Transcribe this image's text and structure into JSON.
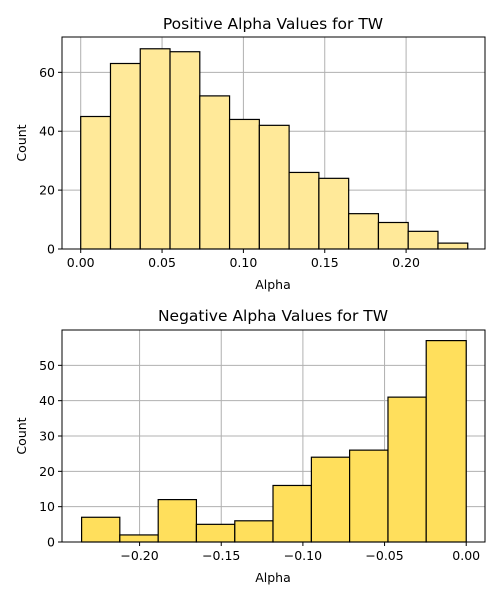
{
  "chart_data": [
    {
      "type": "histogram",
      "title": "Positive Alpha Values for TW",
      "xlabel": "Alpha",
      "ylabel": "Count",
      "xlim": [
        -0.0115,
        0.2485
      ],
      "ylim": [
        0,
        72
      ],
      "grid": true,
      "bar_color": "#ffe999",
      "x_ticks": [
        0.0,
        0.05,
        0.1,
        0.15,
        0.2
      ],
      "x_tick_labels": [
        "0.00",
        "0.05",
        "0.10",
        "0.15",
        "0.20"
      ],
      "y_ticks": [
        0,
        20,
        40,
        60
      ],
      "y_tick_labels": [
        "0",
        "20",
        "40",
        "60"
      ],
      "bins": [
        {
          "x0": 0.0,
          "x1": 0.0183,
          "count": 45
        },
        {
          "x0": 0.0183,
          "x1": 0.0366,
          "count": 63
        },
        {
          "x0": 0.0366,
          "x1": 0.0549,
          "count": 68
        },
        {
          "x0": 0.0549,
          "x1": 0.0732,
          "count": 67
        },
        {
          "x0": 0.0732,
          "x1": 0.0915,
          "count": 52
        },
        {
          "x0": 0.0915,
          "x1": 0.1098,
          "count": 44
        },
        {
          "x0": 0.1098,
          "x1": 0.1281,
          "count": 42
        },
        {
          "x0": 0.1281,
          "x1": 0.1464,
          "count": 26
        },
        {
          "x0": 0.1464,
          "x1": 0.1647,
          "count": 24
        },
        {
          "x0": 0.1647,
          "x1": 0.183,
          "count": 12
        },
        {
          "x0": 0.183,
          "x1": 0.2013,
          "count": 9
        },
        {
          "x0": 0.2013,
          "x1": 0.2196,
          "count": 6
        },
        {
          "x0": 0.2196,
          "x1": 0.2379,
          "count": 2
        }
      ]
    },
    {
      "type": "histogram",
      "title": "Negative Alpha Values for TW",
      "xlabel": "Alpha",
      "ylabel": "Count",
      "xlim": [
        -0.2475,
        0.0115
      ],
      "ylim": [
        0,
        60
      ],
      "grid": true,
      "bar_color": "#ffdf5c",
      "x_ticks": [
        -0.2,
        -0.15,
        -0.1,
        -0.05,
        0.0
      ],
      "x_tick_labels": [
        "−0.20",
        "−0.15",
        "−0.10",
        "−0.05",
        "0.00"
      ],
      "y_ticks": [
        0,
        10,
        20,
        30,
        40,
        50
      ],
      "y_tick_labels": [
        "0",
        "10",
        "20",
        "30",
        "40",
        "50"
      ],
      "bins": [
        {
          "x0": -0.2355,
          "x1": -0.2121,
          "count": 7
        },
        {
          "x0": -0.2121,
          "x1": -0.1886,
          "count": 2
        },
        {
          "x0": -0.1886,
          "x1": -0.1652,
          "count": 12
        },
        {
          "x0": -0.1652,
          "x1": -0.1417,
          "count": 5
        },
        {
          "x0": -0.1417,
          "x1": -0.1183,
          "count": 6
        },
        {
          "x0": -0.1183,
          "x1": -0.0948,
          "count": 16
        },
        {
          "x0": -0.0948,
          "x1": -0.0714,
          "count": 24
        },
        {
          "x0": -0.0714,
          "x1": -0.0479,
          "count": 26
        },
        {
          "x0": -0.0479,
          "x1": -0.0245,
          "count": 41
        },
        {
          "x0": -0.0245,
          "x1": 0.0,
          "count": 57
        }
      ]
    }
  ]
}
